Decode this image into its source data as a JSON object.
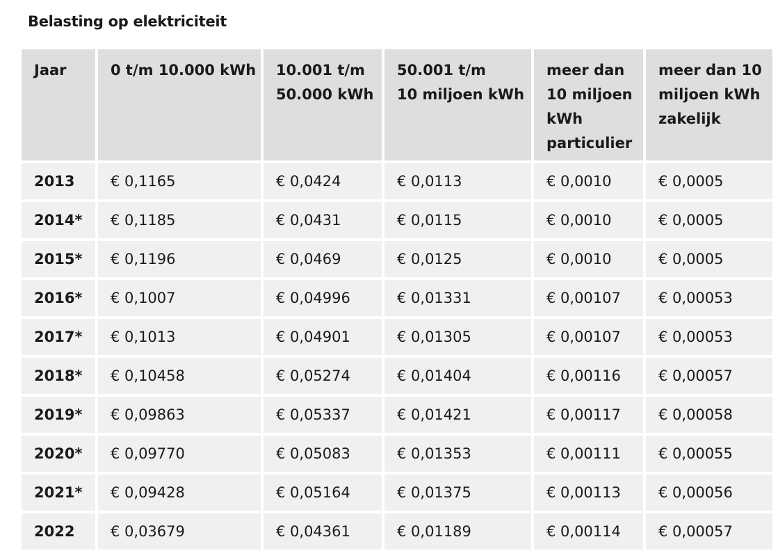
{
  "title": "Belasting op elektriciteit",
  "table": {
    "headers": [
      [
        "Jaar"
      ],
      [
        "0 t/m 10.000 kWh"
      ],
      [
        "10.001 t/m",
        "50.000 kWh"
      ],
      [
        "50.001 t/m",
        "10 miljoen kWh"
      ],
      [
        "meer dan",
        "10 miljoen",
        "kWh",
        "particulier"
      ],
      [
        "meer dan 10",
        "miljoen kWh",
        "zakelijk"
      ]
    ],
    "rows": [
      [
        "2013",
        "€ 0,1165",
        "€ 0,0424",
        "€ 0,0113",
        "€ 0,0010",
        "€ 0,0005"
      ],
      [
        "2014*",
        "€ 0,1185",
        "€ 0,0431",
        "€ 0,0115",
        "€ 0,0010",
        "€ 0,0005"
      ],
      [
        "2015*",
        "€ 0,1196",
        "€ 0,0469",
        "€ 0,0125",
        "€ 0,0010",
        "€ 0,0005"
      ],
      [
        "2016*",
        "€ 0,1007",
        "€ 0,04996",
        "€ 0,01331",
        "€ 0,00107",
        "€ 0,00053"
      ],
      [
        "2017*",
        "€ 0,1013",
        "€ 0,04901",
        "€ 0,01305",
        "€ 0,00107",
        "€ 0,00053"
      ],
      [
        "2018*",
        "€ 0,10458",
        "€ 0,05274",
        "€ 0,01404",
        "€ 0,00116",
        "€ 0,00057"
      ],
      [
        "2019*",
        "€ 0,09863",
        "€ 0,05337",
        "€ 0,01421",
        "€ 0,00117",
        "€ 0,00058"
      ],
      [
        "2020*",
        "€ 0,09770",
        "€ 0,05083",
        "€ 0,01353",
        "€ 0,00111",
        "€ 0,00055"
      ],
      [
        "2021*",
        "€ 0,09428",
        "€ 0,05164",
        "€ 0,01375",
        "€ 0,00113",
        "€ 0,00056"
      ],
      [
        "2022",
        "€ 0,03679",
        "€ 0,04361",
        "€ 0,01189",
        "€ 0,00114",
        "€ 0,00057"
      ]
    ]
  },
  "colors": {
    "header_bg": "#dedede",
    "cell_bg": "#f0f0f0",
    "text": "#1a1a1a"
  }
}
